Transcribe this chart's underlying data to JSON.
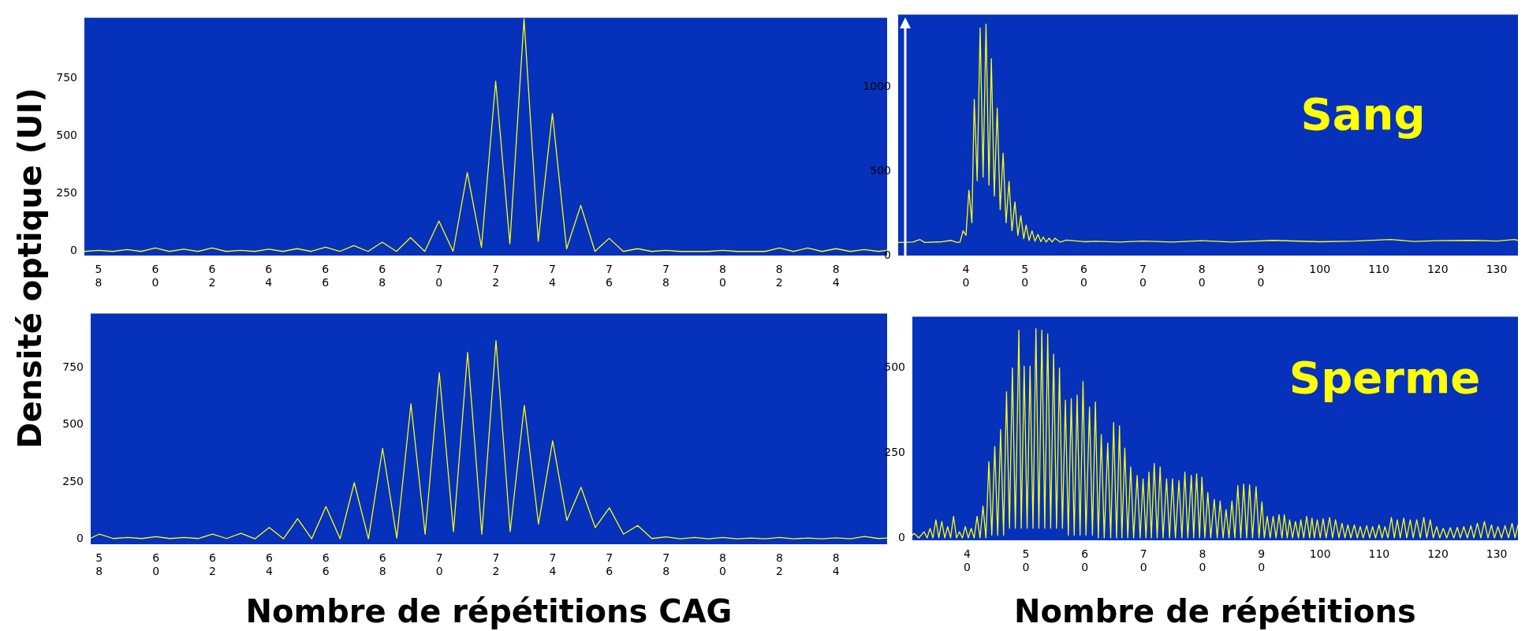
{
  "chart_data": [
    {
      "type": "line",
      "ylabel": "Densité optique (UI)",
      "xlim": [
        57.5,
        85.8
      ],
      "ylim": [
        -18,
        1015
      ],
      "yticks": [
        0,
        250,
        500,
        750
      ],
      "xticks": [
        58,
        60,
        62,
        64,
        66,
        68,
        70,
        72,
        74,
        76,
        78,
        80,
        82,
        84
      ],
      "series": [
        {
          "color": "#ffff00",
          "x": [
            57.5,
            58,
            58.5,
            59,
            59.5,
            60,
            60.5,
            61,
            61.5,
            62,
            62.5,
            63,
            63.5,
            64,
            64.5,
            65,
            65.5,
            66,
            66.5,
            67,
            67.5,
            68,
            68.5,
            69,
            69.5,
            70,
            70.5,
            71,
            71.5,
            72,
            72.5,
            73,
            73.5,
            74,
            74.5,
            75,
            75.5,
            76,
            76.5,
            77,
            77.5,
            78,
            78.5,
            79,
            79.5,
            80,
            80.5,
            81,
            81.5,
            82,
            82.5,
            83,
            83.5,
            84,
            84.5,
            85,
            85.5,
            85.8
          ],
          "values": [
            0,
            5,
            0,
            8,
            0,
            15,
            0,
            10,
            0,
            15,
            0,
            5,
            0,
            10,
            0,
            12,
            0,
            18,
            0,
            25,
            0,
            40,
            0,
            60,
            0,
            132,
            0,
            342,
            18,
            739,
            33,
            1010,
            44,
            599,
            11,
            200,
            0,
            57,
            0,
            12,
            0,
            5,
            0,
            0,
            0,
            5,
            0,
            0,
            0,
            15,
            0,
            15,
            0,
            12,
            0,
            8,
            0,
            5
          ]
        }
      ]
    },
    {
      "type": "line",
      "xlabel": "Nombre de répétitions CAG",
      "xlim": [
        57.7,
        85.8
      ],
      "ylim": [
        -22,
        987
      ],
      "yticks": [
        0,
        250,
        500,
        750
      ],
      "xticks": [
        58,
        60,
        62,
        64,
        66,
        68,
        70,
        72,
        74,
        76,
        78,
        80,
        82,
        84
      ],
      "series": [
        {
          "color": "#ffff00",
          "x": [
            57.7,
            58,
            58.5,
            59,
            59.5,
            60,
            60.5,
            61,
            61.5,
            62,
            62.5,
            63,
            63.5,
            64,
            64.5,
            65,
            65.5,
            66,
            66.5,
            67,
            67.5,
            68,
            68.5,
            69,
            69.5,
            70,
            70.5,
            71,
            71.5,
            72,
            72.5,
            73,
            73.5,
            74,
            74.5,
            75,
            75.5,
            76,
            76.5,
            77,
            77.5,
            78,
            78.5,
            79,
            79.5,
            80,
            80.5,
            81,
            81.5,
            82,
            82.5,
            83,
            83.5,
            84,
            84.5,
            85,
            85.5,
            85.8
          ],
          "values": [
            5,
            22,
            3,
            8,
            3,
            11,
            3,
            8,
            3,
            22,
            3,
            26,
            2,
            51,
            2,
            90,
            2,
            143,
            2,
            247,
            2,
            397,
            5,
            592,
            22,
            728,
            33,
            817,
            22,
            868,
            33,
            585,
            66,
            430,
            82,
            227,
            51,
            137,
            22,
            60,
            3,
            10,
            2,
            8,
            2,
            8,
            2,
            5,
            2,
            8,
            2,
            5,
            2,
            6,
            2,
            12,
            3,
            5
          ]
        }
      ]
    },
    {
      "type": "line",
      "annotations": [
        "Sang"
      ],
      "xlim": [
        28.5,
        133.6
      ],
      "ylim": [
        0,
        1430
      ],
      "yticks": [
        0,
        500,
        1000
      ],
      "xticks": [
        40,
        50,
        60,
        70,
        80,
        90,
        100,
        110,
        120,
        130
      ],
      "series": [
        {
          "color": "#ffff00",
          "x": [
            28.5,
            31,
            32.2,
            33,
            36,
            37.5,
            38.5,
            39,
            39.5,
            40,
            40.5,
            41,
            41.4,
            41.9,
            42.4,
            42.9,
            43.4,
            43.9,
            44.3,
            44.8,
            45.3,
            45.8,
            46.3,
            46.8,
            47.3,
            47.8,
            48.3,
            48.8,
            49.3,
            49.8,
            50.2,
            50.7,
            51.2,
            51.7,
            52.2,
            52.7,
            53.1,
            53.6,
            54.1,
            54.6,
            55.1,
            56,
            57,
            60,
            62,
            66,
            70,
            75,
            80,
            85,
            92,
            100,
            106,
            112,
            116,
            120,
            126,
            130,
            133,
            133.6
          ],
          "values": [
            78,
            80,
            95,
            78,
            82,
            90,
            78,
            80,
            147,
            120,
            388,
            194,
            927,
            444,
            1350,
            465,
            1373,
            418,
            1168,
            353,
            875,
            272,
            608,
            194,
            440,
            147,
            319,
            120,
            237,
            100,
            181,
            90,
            147,
            85,
            125,
            82,
            110,
            80,
            103,
            80,
            103,
            80,
            92,
            82,
            85,
            80,
            86,
            80,
            88,
            80,
            90,
            82,
            86,
            95,
            84,
            88,
            90,
            86,
            95,
            90
          ]
        }
      ]
    },
    {
      "type": "line",
      "annotations": [
        "Sperme"
      ],
      "xlabel": "Nombre de répétitions",
      "xlim": [
        30.7,
        133.6
      ],
      "ylim": [
        -5,
        650
      ],
      "yticks": [
        0,
        250,
        500
      ],
      "xticks": [
        40,
        50,
        60,
        70,
        80,
        90,
        100,
        110,
        120,
        130
      ],
      "series": [
        {
          "color": "#ffff00",
          "x": [
            30.7,
            31,
            31.8,
            32.7,
            33.2,
            33.7,
            34.2,
            34.7,
            35.2,
            35.7,
            36.2,
            36.7,
            37.2,
            37.7,
            38.2,
            38.7,
            39.2,
            39.7,
            40.2,
            40.7,
            41.2,
            41.7,
            42.2,
            42.7,
            43.2,
            43.7,
            44.2,
            44.7,
            45.2,
            45.7,
            46.2,
            46.7,
            47.2,
            47.7,
            48.2,
            48.8,
            49.2,
            49.7,
            50.2,
            50.7,
            51.2,
            51.7,
            52.2,
            52.7,
            53.2,
            53.7,
            54.2,
            54.7,
            55.2,
            55.7,
            56.2,
            56.7,
            57.2,
            57.7,
            58.2,
            58.7,
            59.2,
            59.7,
            60.2,
            60.8,
            61.3,
            61.8,
            62.3,
            62.8,
            63.3,
            63.9,
            64.4,
            64.9,
            65.4,
            65.9,
            66.3,
            66.8,
            67.3,
            67.8,
            68.3,
            68.9,
            69.4,
            69.9,
            70.4,
            70.9,
            71.3,
            71.8,
            72.3,
            72.8,
            73.3,
            73.9,
            74.4,
            74.9,
            75.4,
            76,
            76.5,
            77,
            77.5,
            78.1,
            78.5,
            79,
            79.5,
            79.9,
            80.4,
            80.9,
            81.4,
            82,
            82.5,
            83,
            83.5,
            84,
            84.5,
            85,
            85.5,
            86,
            86.5,
            87,
            87.5,
            88,
            88.5,
            89.1,
            89.6,
            90.1,
            90.5,
            91,
            91.5,
            92,
            92.5,
            93,
            93.5,
            93.9,
            94.4,
            94.8,
            95.3,
            95.8,
            96.3,
            96.7,
            97.2,
            97.7,
            98.2,
            98.6,
            99,
            99.5,
            100,
            100.5,
            101,
            101.6,
            102.1,
            102.6,
            103.2,
            103.7,
            104.2,
            104.7,
            105.2,
            105.8,
            106.3,
            106.8,
            107.3,
            107.9,
            108.4,
            108.9,
            109.4,
            110,
            110.5,
            111,
            111.5,
            112.1,
            112.6,
            113.1,
            113.6,
            114.2,
            114.7,
            115.3,
            115.8,
            116.4,
            117,
            117.6,
            118.1,
            118.7,
            119.2,
            119.8,
            120.3,
            120.9,
            121.5,
            122.1,
            122.7,
            123.3,
            123.8,
            124.4,
            125,
            125.6,
            126.1,
            126.7,
            127.3,
            127.9,
            128.5,
            129.1,
            129.6,
            130.2,
            130.8,
            131.4,
            132,
            132.6,
            133.1,
            133.6
          ],
          "values": [
            10,
            15,
            2,
            20,
            2,
            30,
            2,
            55,
            2,
            50,
            2,
            35,
            2,
            65,
            2,
            20,
            2,
            35,
            2,
            30,
            2,
            65,
            2,
            95,
            2,
            225,
            10,
            270,
            10,
            320,
            10,
            430,
            30,
            500,
            30,
            610,
            30,
            505,
            30,
            505,
            30,
            615,
            30,
            610,
            30,
            600,
            30,
            540,
            30,
            500,
            30,
            405,
            10,
            410,
            10,
            420,
            10,
            460,
            10,
            385,
            10,
            400,
            2,
            305,
            2,
            280,
            2,
            340,
            2,
            330,
            2,
            265,
            2,
            210,
            2,
            185,
            2,
            175,
            2,
            195,
            2,
            220,
            2,
            210,
            2,
            175,
            2,
            175,
            2,
            170,
            2,
            195,
            2,
            185,
            2,
            190,
            2,
            180,
            2,
            135,
            2,
            115,
            2,
            110,
            2,
            85,
            2,
            110,
            2,
            155,
            2,
            160,
            2,
            158,
            2,
            152,
            2,
            108,
            2,
            65,
            2,
            65,
            2,
            70,
            2,
            70,
            2,
            55,
            2,
            50,
            2,
            55,
            2,
            65,
            2,
            60,
            2,
            55,
            2,
            58,
            2,
            62,
            2,
            55,
            2,
            45,
            2,
            40,
            2,
            40,
            2,
            35,
            2,
            38,
            2,
            35,
            2,
            40,
            2,
            35,
            2,
            62,
            2,
            55,
            2,
            60,
            2,
            55,
            2,
            55,
            2,
            62,
            2,
            55,
            2,
            35,
            2,
            30,
            2,
            32,
            2,
            33,
            2,
            35,
            2,
            38,
            2,
            45,
            2,
            50,
            2,
            40,
            2,
            35,
            2,
            38,
            2,
            45,
            2,
            40
          ]
        }
      ]
    }
  ]
}
